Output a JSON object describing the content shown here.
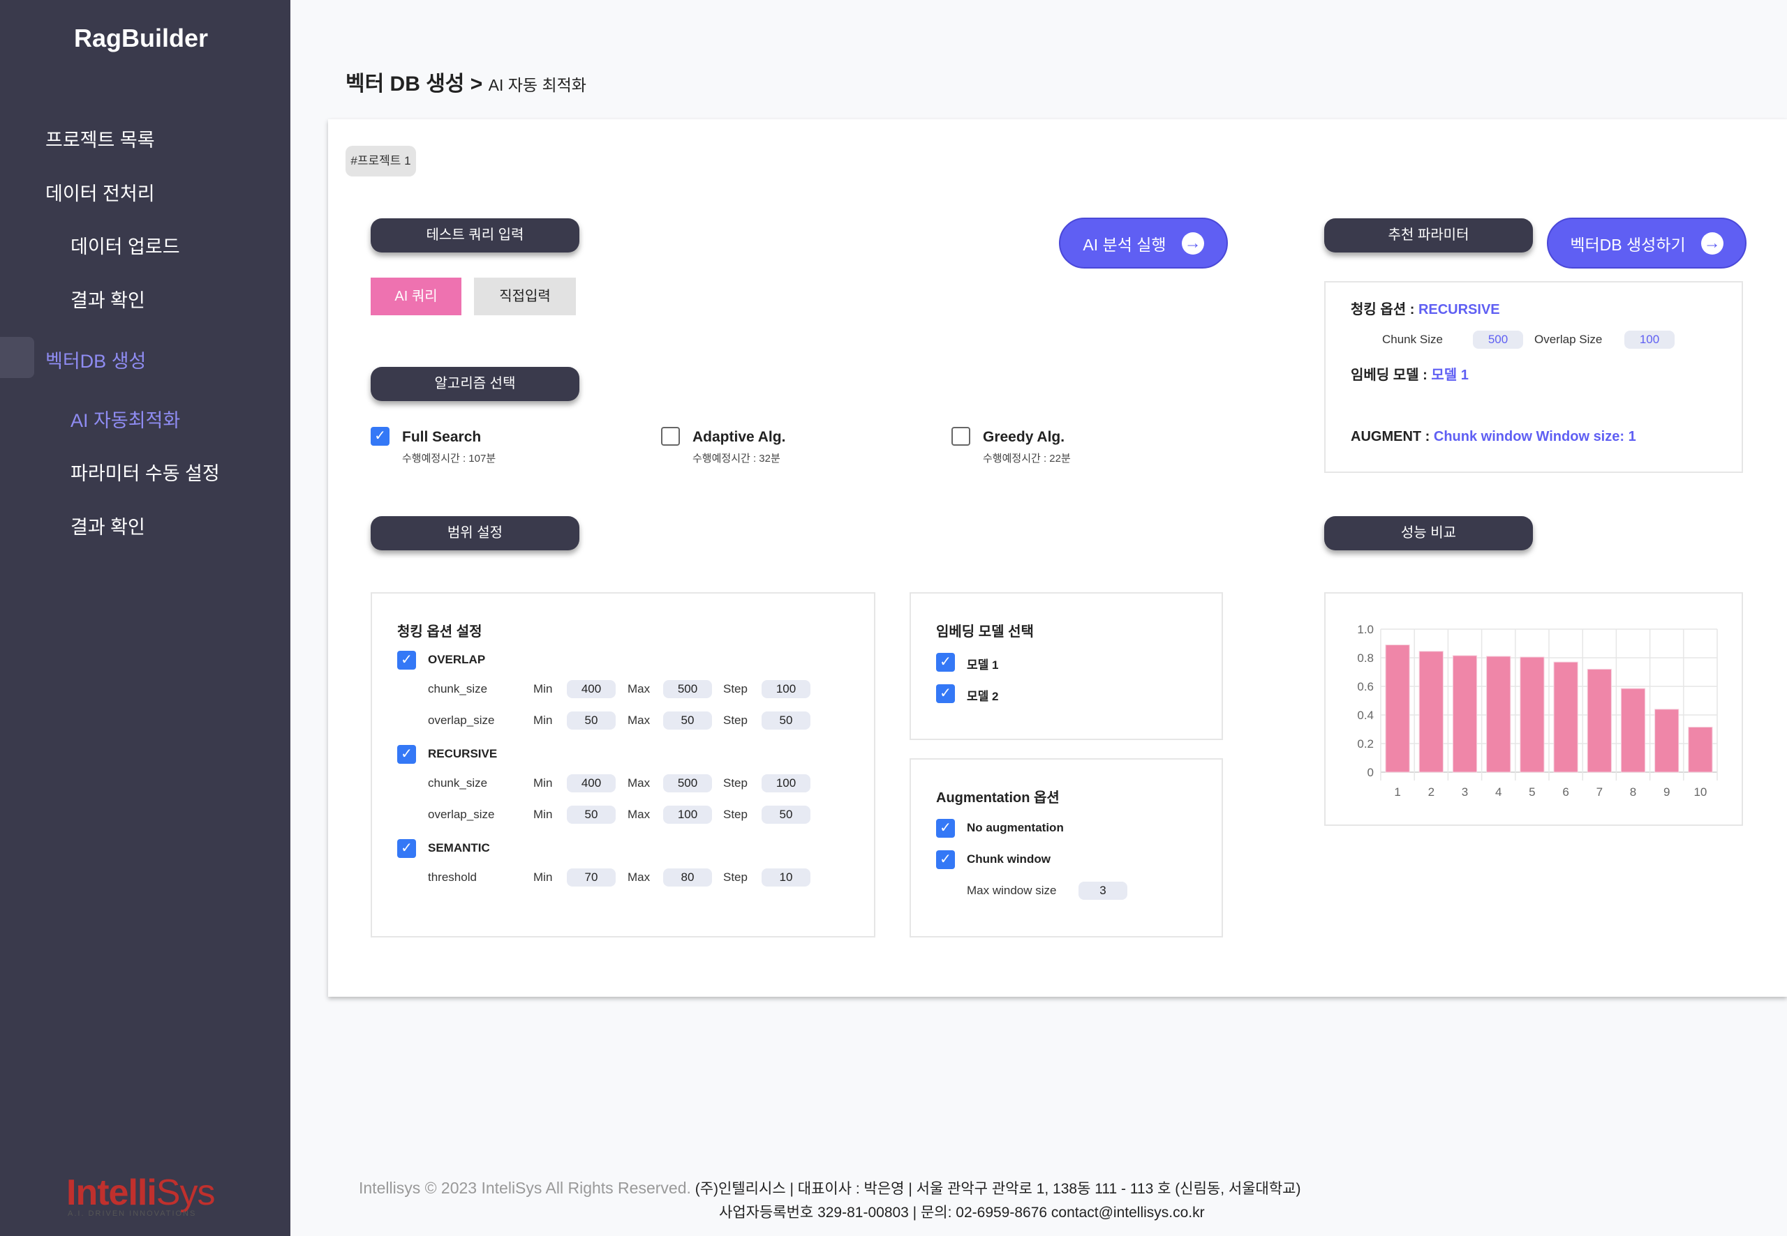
{
  "sidebar": {
    "brand": "RagBuilder",
    "items": [
      {
        "label": "프로젝트 목록"
      },
      {
        "label": "데이터 전처리"
      },
      {
        "label": "데이터 업로드"
      },
      {
        "label": "결과 확인"
      },
      {
        "label": "벡터DB 생성"
      },
      {
        "label": "AI 자동최적화"
      },
      {
        "label": "파라미터 수동 설정"
      },
      {
        "label": "결과 확인"
      }
    ],
    "logo": {
      "text_bold": "Intelli",
      "text_light": "Sys",
      "tagline": "A.I. DRIVEN INNOVATIONS"
    }
  },
  "header": {
    "title": "벡터 DB 생성 >",
    "subtitle": "AI 자동 최적화"
  },
  "project_tag": "#프로젝트 1",
  "query": {
    "section": "테스트 쿼리 입력",
    "tabs": [
      "AI 쿼리",
      "직접입력"
    ],
    "active_tab": "AI 쿼리"
  },
  "run_button": "AI 분석 실행",
  "algorithm": {
    "section": "알고리즘 선택",
    "options": [
      {
        "name": "Full Search",
        "time": "수행예정시간 : 107분",
        "checked": true
      },
      {
        "name": "Adaptive Alg.",
        "time": "수행예정시간 : 32분",
        "checked": false
      },
      {
        "name": "Greedy Alg.",
        "time": "수행예정시간 : 22분",
        "checked": false
      }
    ]
  },
  "range": {
    "section": "범위 설정",
    "chunking": {
      "title": "청킹 옵션 설정",
      "groups": [
        {
          "name": "OVERLAP",
          "checked": true,
          "params": [
            {
              "name": "chunk_size",
              "min": "400",
              "max": "500",
              "step": "100"
            },
            {
              "name": "overlap_size",
              "min": "50",
              "max": "50",
              "step": "50"
            }
          ]
        },
        {
          "name": "RECURSIVE",
          "checked": true,
          "params": [
            {
              "name": "chunk_size",
              "min": "400",
              "max": "500",
              "step": "100"
            },
            {
              "name": "overlap_size",
              "min": "50",
              "max": "100",
              "step": "50"
            }
          ]
        },
        {
          "name": "SEMANTIC",
          "checked": true,
          "params": [
            {
              "name": "threshold",
              "min": "70",
              "max": "80",
              "step": "10"
            }
          ]
        }
      ],
      "labels": {
        "min": "Min",
        "max": "Max",
        "step": "Step"
      }
    },
    "embedding": {
      "title": "임베딩 모델 선택",
      "models": [
        {
          "name": "모델 1",
          "checked": true
        },
        {
          "name": "모델 2",
          "checked": true
        }
      ]
    },
    "augmentation": {
      "title": "Augmentation 옵션",
      "options": [
        {
          "name": "No augmentation",
          "checked": true
        },
        {
          "name": "Chunk window",
          "checked": true
        }
      ],
      "max_window_label": "Max window size",
      "max_window_value": "3"
    }
  },
  "recommend": {
    "section": "추천 파라미터",
    "create_button": "벡터DB 생성하기",
    "chunk_label": "청킹 옵션 :",
    "chunk_value": "RECURSIVE",
    "chunk_size_label": "Chunk Size",
    "chunk_size": "500",
    "overlap_label": "Overlap Size",
    "overlap_size": "100",
    "embed_label": "임베딩 모델 :",
    "embed_value": "모델 1",
    "augment_label": "AUGMENT :",
    "augment_value": "Chunk window Window size: 1"
  },
  "performance": {
    "section": "성능 비교"
  },
  "chart_data": {
    "type": "bar",
    "categories": [
      "1",
      "2",
      "3",
      "4",
      "5",
      "6",
      "7",
      "8",
      "9",
      "10"
    ],
    "values": [
      0.89,
      0.845,
      0.815,
      0.81,
      0.805,
      0.77,
      0.72,
      0.585,
      0.44,
      0.315
    ],
    "ylim": [
      0,
      1
    ],
    "yticks": [
      "0",
      "0.2",
      "0.4",
      "0.6",
      "0.8",
      "1.0"
    ],
    "grid": true,
    "color": "#ef86a8",
    "title": "",
    "xlabel": "",
    "ylabel": ""
  },
  "footer": {
    "copyright": "Intellisys © 2023 InteliSys All Rights Reserved.",
    "line1": "(주)인텔리시스  |  대표이사 : 박은영  |  서울 관악구 관악로 1, 138동 111 - 113 호 (신림동, 서울대학교)",
    "line2": "사업자등록번호 329-81-00803  |  문의: 02-6959-8676 contact@intellisys.co.kr"
  }
}
